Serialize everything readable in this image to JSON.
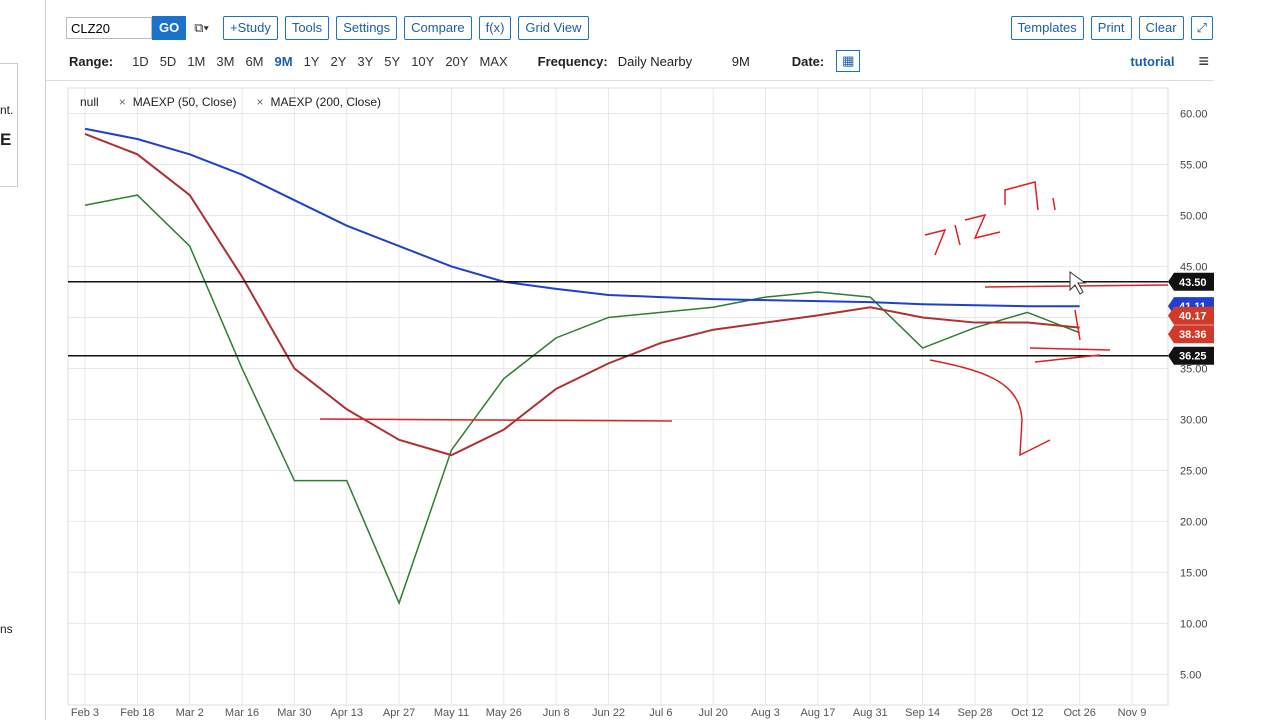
{
  "sidebar": {
    "fragments": [
      "nt.",
      "E",
      "ns"
    ]
  },
  "toolbar": {
    "symbol": "CLZ20",
    "go": "GO",
    "buttons": [
      "+Study",
      "Tools",
      "Settings",
      "Compare",
      "f(x)",
      "Grid View"
    ],
    "right_buttons": [
      "Templates",
      "Print",
      "Clear"
    ]
  },
  "range_bar": {
    "range_label": "Range:",
    "ranges": [
      "1D",
      "5D",
      "1M",
      "3M",
      "6M",
      "9M",
      "1Y",
      "2Y",
      "3Y",
      "5Y",
      "10Y",
      "20Y",
      "MAX"
    ],
    "selected": "9M",
    "frequency_label": "Frequency:",
    "frequency": "Daily Nearby",
    "period": "9M",
    "date_label": "Date:",
    "tutorial": "tutorial"
  },
  "chart_data": {
    "type": "line",
    "categories": [
      "Feb 3",
      "Feb 18",
      "Mar 2",
      "Mar 16",
      "Mar 30",
      "Apr 13",
      "Apr 27",
      "May 11",
      "May 26",
      "Jun 8",
      "Jun 22",
      "Jul 6",
      "Jul 20",
      "Aug 3",
      "Aug 17",
      "Aug 31",
      "Sep 14",
      "Sep 28",
      "Oct 12",
      "Oct 26",
      "Nov 9"
    ],
    "series": [
      {
        "name": "null",
        "color": "#2e7d32",
        "values": [
          51,
          52,
          47,
          35,
          24,
          24,
          12,
          27,
          34,
          38,
          40,
          40.5,
          41,
          42,
          42.5,
          42,
          37,
          39,
          40.5,
          38.5,
          null
        ]
      },
      {
        "name": "MAEXP (50, Close)",
        "color": "#b03030",
        "values": [
          58,
          56,
          52,
          44,
          35,
          31,
          28,
          26.5,
          29,
          33,
          35.5,
          37.5,
          38.8,
          39.5,
          40.2,
          41,
          40,
          39.5,
          39.5,
          39,
          null
        ]
      },
      {
        "name": "MAEXP (200, Close)",
        "color": "#1f3fcf",
        "values": [
          58.5,
          57.5,
          56,
          54,
          51.5,
          49,
          47,
          45,
          43.5,
          42.8,
          42.2,
          42,
          41.8,
          41.7,
          41.6,
          41.5,
          41.3,
          41.2,
          41.1,
          41.1,
          null
        ]
      }
    ],
    "ylim": [
      2,
      62.5
    ],
    "yticks": [
      {
        "value": 60,
        "label": "60.00"
      },
      {
        "value": 55,
        "label": "55.00"
      },
      {
        "value": 50,
        "label": "50.00"
      },
      {
        "value": 45,
        "label": "45.00"
      },
      {
        "value": 40,
        "label": "40.00"
      },
      {
        "value": 35,
        "label": "35.00"
      },
      {
        "value": 30,
        "label": "30.00"
      },
      {
        "value": 25,
        "label": "25.00"
      },
      {
        "value": 20,
        "label": "20.00"
      },
      {
        "value": 15,
        "label": "15.00"
      },
      {
        "value": 10,
        "label": "10.00"
      },
      {
        "value": 5,
        "label": "5.00"
      }
    ],
    "grid": true,
    "price_tags": [
      {
        "value": 43.5,
        "label": "43.50",
        "color": "#111111",
        "line": true
      },
      {
        "value": 41.11,
        "label": "41.11",
        "color": "#1f3fcf",
        "line": false
      },
      {
        "value": 40.17,
        "label": "40.17",
        "color": "#d03a2a",
        "line": false
      },
      {
        "value": 38.36,
        "label": "38.36",
        "color": "#d03a2a",
        "line": false
      },
      {
        "value": 36.25,
        "label": "36.25",
        "color": "#111111",
        "line": true
      }
    ]
  }
}
